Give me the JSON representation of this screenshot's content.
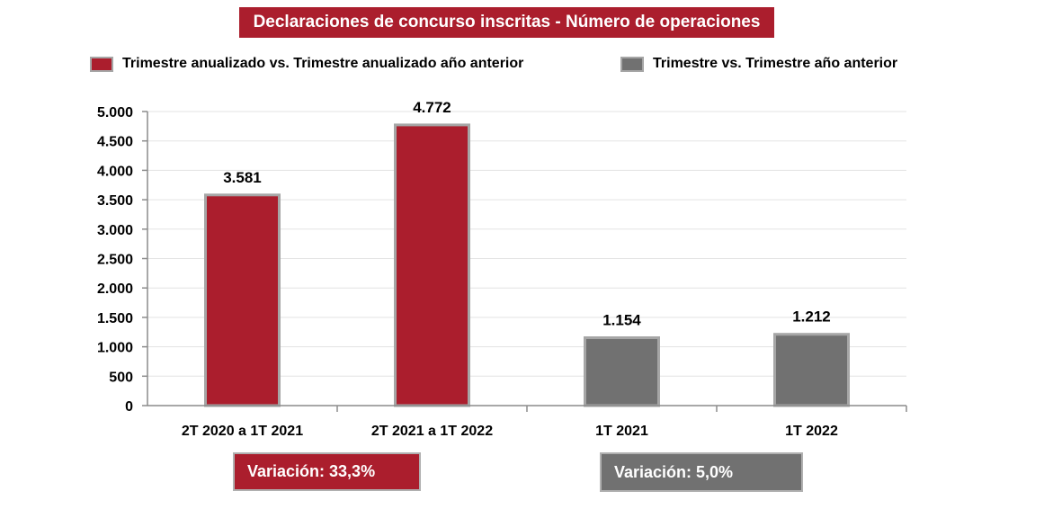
{
  "title": "Declaraciones de concurso inscritas - Número de operaciones",
  "legend": [
    {
      "label": "Trimestre anualizado  vs. Trimestre anualizado  año anterior",
      "color": "#ab1e2d"
    },
    {
      "label": "Trimestre vs. Trimestre año anterior",
      "color": "#717171"
    }
  ],
  "variations": [
    {
      "label": "Variación:  33,3%",
      "color": "#ab1e2d"
    },
    {
      "label": "Variación: 5,0%",
      "color": "#717171"
    }
  ],
  "chart_data": {
    "type": "bar",
    "categories": [
      "2T 2020 a 1T 2021",
      "2T 2021 a 1T 2022",
      "1T 2021",
      "1T 2022"
    ],
    "values": [
      3581,
      4772,
      1154,
      1212
    ],
    "value_labels": [
      "3.581",
      "4.772",
      "1.154",
      "1.212"
    ],
    "bar_colors": [
      "#ab1e2d",
      "#ab1e2d",
      "#717171",
      "#717171"
    ],
    "ylim": [
      0,
      5000
    ],
    "yticks": [
      0,
      500,
      1000,
      1500,
      2000,
      2500,
      3000,
      3500,
      4000,
      4500,
      5000
    ],
    "ytick_labels": [
      "0",
      "500",
      "1.000",
      "1.500",
      "2.000",
      "2.500",
      "3.000",
      "3.500",
      "4.000",
      "4.500",
      "5.000"
    ],
    "grid": true,
    "legend_position": "top"
  }
}
